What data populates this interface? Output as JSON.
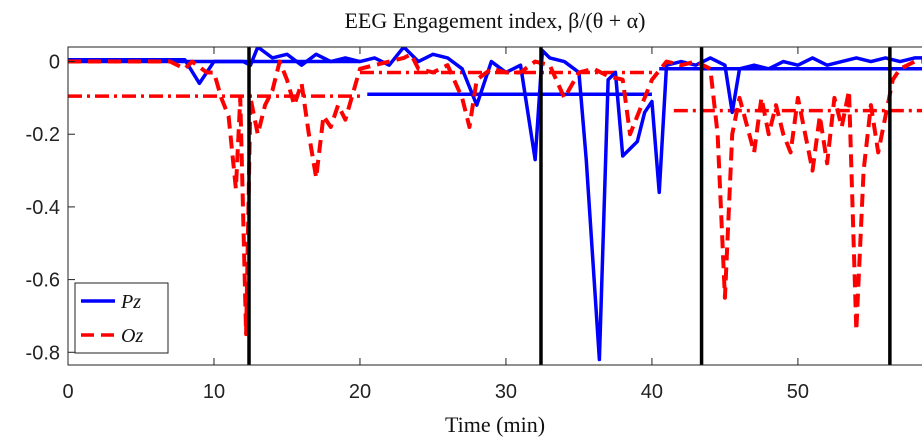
{
  "chart_data": {
    "type": "line",
    "title": "EEG Engagement index, β/(θ + α)",
    "xlabel": "Time (min)",
    "xlim": [
      0,
      58.5
    ],
    "ylim": [
      -0.835,
      0.04
    ],
    "xticks": [
      0,
      10,
      20,
      30,
      40,
      50
    ],
    "yticks": [
      0,
      -0.2,
      -0.4,
      -0.6,
      -0.8
    ],
    "legend": "lower left",
    "series": [
      {
        "name": "Pz",
        "color": "#0000ff",
        "style": "solid",
        "x": [
          0,
          8,
          9,
          10,
          12,
          12.5,
          13,
          14,
          15,
          16,
          17,
          18,
          19,
          20,
          21,
          22,
          23,
          24,
          25,
          26,
          27,
          28,
          29,
          30,
          31,
          32,
          32.5,
          33,
          34,
          35,
          35.5,
          36.4,
          37,
          37.5,
          38,
          39,
          39.5,
          40,
          40.5,
          41,
          42,
          43,
          44,
          45,
          45.5,
          46,
          47,
          48,
          49,
          50,
          51,
          52,
          53,
          54,
          55,
          56,
          57,
          58,
          58.5
        ],
        "values": [
          0.005,
          0.005,
          -0.06,
          0,
          0,
          -0.01,
          0.04,
          0.01,
          0.02,
          -0.01,
          0.02,
          0,
          0.01,
          0,
          0.01,
          -0.01,
          0.04,
          0,
          0.02,
          0.01,
          -0.02,
          -0.12,
          0,
          -0.03,
          -0.01,
          -0.27,
          0.03,
          0.01,
          0,
          -0.03,
          -0.27,
          -0.82,
          -0.05,
          -0.03,
          -0.26,
          -0.22,
          -0.14,
          -0.11,
          -0.36,
          -0.01,
          0,
          -0.01,
          0.01,
          -0.01,
          -0.14,
          -0.02,
          -0.01,
          -0.02,
          0,
          -0.01,
          0.01,
          -0.01,
          0,
          0.01,
          0,
          0.01,
          0,
          0.01,
          0.01
        ]
      },
      {
        "name": "Oz",
        "color": "#ff0000",
        "style": "dashed",
        "x": [
          0,
          7,
          8,
          8.5,
          9.5,
          10,
          10.5,
          11,
          11.5,
          11.8,
          12.2,
          12.5,
          13,
          13.5,
          14,
          14.5,
          15,
          15.5,
          16,
          16.5,
          17,
          17.5,
          18,
          18.5,
          19,
          19.5,
          20,
          21,
          22,
          23,
          23.5,
          24,
          25,
          26,
          27,
          27.5,
          28,
          29,
          30,
          31,
          32,
          33,
          34,
          35,
          36,
          37,
          38,
          38.5,
          39,
          40,
          41,
          42,
          43,
          44,
          44.5,
          45,
          45.5,
          46,
          47,
          47.5,
          48,
          48.5,
          49,
          49.5,
          50,
          50.5,
          51,
          51.5,
          52,
          52.5,
          53,
          53.5,
          54,
          54.5,
          55,
          55.5,
          56,
          56.5,
          57,
          58,
          58.5
        ],
        "values": [
          0,
          0,
          -0.02,
          0,
          -0.03,
          -0.03,
          -0.1,
          -0.15,
          -0.35,
          -0.1,
          -0.75,
          -0.1,
          -0.2,
          -0.12,
          -0.08,
          0,
          -0.05,
          -0.12,
          -0.06,
          -0.2,
          -0.32,
          -0.15,
          -0.18,
          -0.12,
          -0.16,
          -0.09,
          -0.02,
          -0.01,
          0,
          0.01,
          0.02,
          -0.02,
          -0.03,
          -0.01,
          -0.1,
          -0.18,
          -0.05,
          -0.02,
          -0.03,
          -0.03,
          0,
          -0.01,
          -0.1,
          -0.03,
          -0.02,
          -0.04,
          -0.05,
          -0.2,
          -0.15,
          -0.05,
          0,
          -0.01,
          0,
          -0.02,
          -0.2,
          -0.65,
          -0.2,
          -0.1,
          -0.25,
          -0.1,
          -0.2,
          -0.12,
          -0.2,
          -0.25,
          -0.1,
          -0.2,
          -0.3,
          -0.15,
          -0.28,
          -0.1,
          -0.18,
          -0.08,
          -0.74,
          -0.3,
          -0.12,
          -0.25,
          -0.15,
          -0.05,
          -0.02,
          0,
          0
        ]
      }
    ],
    "mean_lines": [
      {
        "color": "#0000ff",
        "style": "solid",
        "x": [
          0,
          20
        ],
        "values": [
          0,
          0
        ]
      },
      {
        "color": "#0000ff",
        "style": "solid",
        "x": [
          20.5,
          40
        ],
        "values": [
          -0.09,
          -0.09
        ]
      },
      {
        "color": "#0000ff",
        "style": "solid",
        "x": [
          40.5,
          58.5
        ],
        "values": [
          -0.02,
          -0.02
        ]
      },
      {
        "color": "#ff0000",
        "style": "dashdot",
        "x": [
          0,
          20
        ],
        "values": [
          -0.095,
          -0.095
        ]
      },
      {
        "color": "#ff0000",
        "style": "dashdot",
        "x": [
          20,
          40
        ],
        "values": [
          -0.03,
          -0.03
        ]
      },
      {
        "color": "#ff0000",
        "style": "dashdot",
        "x": [
          41.5,
          58.5
        ],
        "values": [
          -0.135,
          -0.135
        ]
      }
    ],
    "vlines": [
      12.4,
      32.4,
      43.4,
      56.3
    ]
  }
}
